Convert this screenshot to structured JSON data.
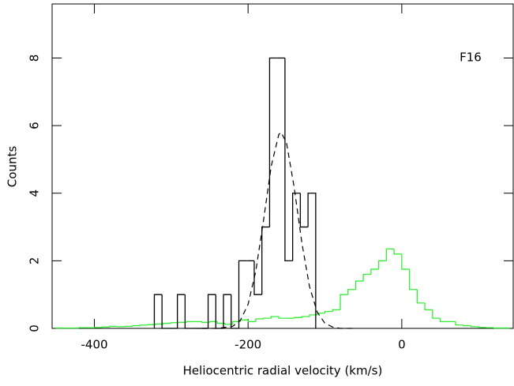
{
  "chart_data": {
    "type": "histogram",
    "xlabel": "Heliocentric radial velocity (km/s)",
    "ylabel": "Counts",
    "annotation": "F16",
    "xlim": [
      -455,
      145
    ],
    "ylim": [
      0,
      9.6
    ],
    "xticks": [
      -400,
      -200,
      0
    ],
    "yticks": [
      0,
      2,
      4,
      6,
      8
    ],
    "color": "#000000",
    "bins": [
      -322,
      -312,
      -302,
      -292,
      -282,
      -272,
      -262,
      -252,
      -242,
      -232,
      -222,
      -212,
      -202,
      -192,
      -182,
      -172,
      -162,
      -152,
      -142,
      -132,
      -122,
      -112
    ],
    "values": [
      1,
      0,
      0,
      1,
      0,
      0,
      0,
      1,
      0,
      1,
      0,
      2,
      2,
      1,
      3,
      8,
      8,
      2,
      4,
      3,
      4
    ],
    "model": {
      "color": "#33ee33",
      "bins": [
        -450,
        -440,
        -430,
        -420,
        -410,
        -400,
        -390,
        -380,
        -370,
        -360,
        -350,
        -340,
        -330,
        -320,
        -310,
        -300,
        -290,
        -280,
        -270,
        -260,
        -250,
        -240,
        -230,
        -220,
        -210,
        -200,
        -190,
        -180,
        -170,
        -160,
        -150,
        -140,
        -130,
        -120,
        -110,
        -100,
        -90,
        -80,
        -70,
        -60,
        -50,
        -40,
        -30,
        -20,
        -10,
        0,
        10,
        20,
        30,
        40,
        50,
        60,
        70,
        80,
        90,
        100,
        110,
        120,
        130,
        140
      ],
      "values": [
        0.01,
        0.01,
        0.01,
        0.02,
        0.02,
        0.03,
        0.04,
        0.06,
        0.05,
        0.06,
        0.08,
        0.1,
        0.11,
        0.13,
        0.15,
        0.17,
        0.18,
        0.2,
        0.2,
        0.18,
        0.2,
        0.15,
        0.12,
        0.2,
        0.25,
        0.2,
        0.28,
        0.3,
        0.35,
        0.3,
        0.3,
        0.32,
        0.35,
        0.4,
        0.45,
        0.5,
        0.55,
        1.0,
        1.15,
        1.4,
        1.6,
        1.75,
        2.0,
        2.35,
        2.2,
        1.75,
        1.15,
        0.75,
        0.55,
        0.3,
        0.2,
        0.2,
        0.1,
        0.08,
        0.05,
        0.03,
        0.02,
        0.01,
        0.01
      ]
    },
    "fit": {
      "color": "#000000",
      "dashed": true,
      "x": [
        -260,
        -240,
        -220,
        -210,
        -200,
        -190,
        -180,
        -170,
        -160,
        -157,
        -150,
        -140,
        -130,
        -120,
        -110,
        -100,
        -90,
        -80,
        -60
      ],
      "values": [
        0,
        0,
        0.06,
        0.24,
        0.71,
        1.69,
        3.18,
        4.79,
        5.74,
        5.8,
        5.49,
        4.17,
        2.53,
        1.23,
        0.48,
        0.15,
        0.04,
        0,
        0
      ]
    }
  }
}
